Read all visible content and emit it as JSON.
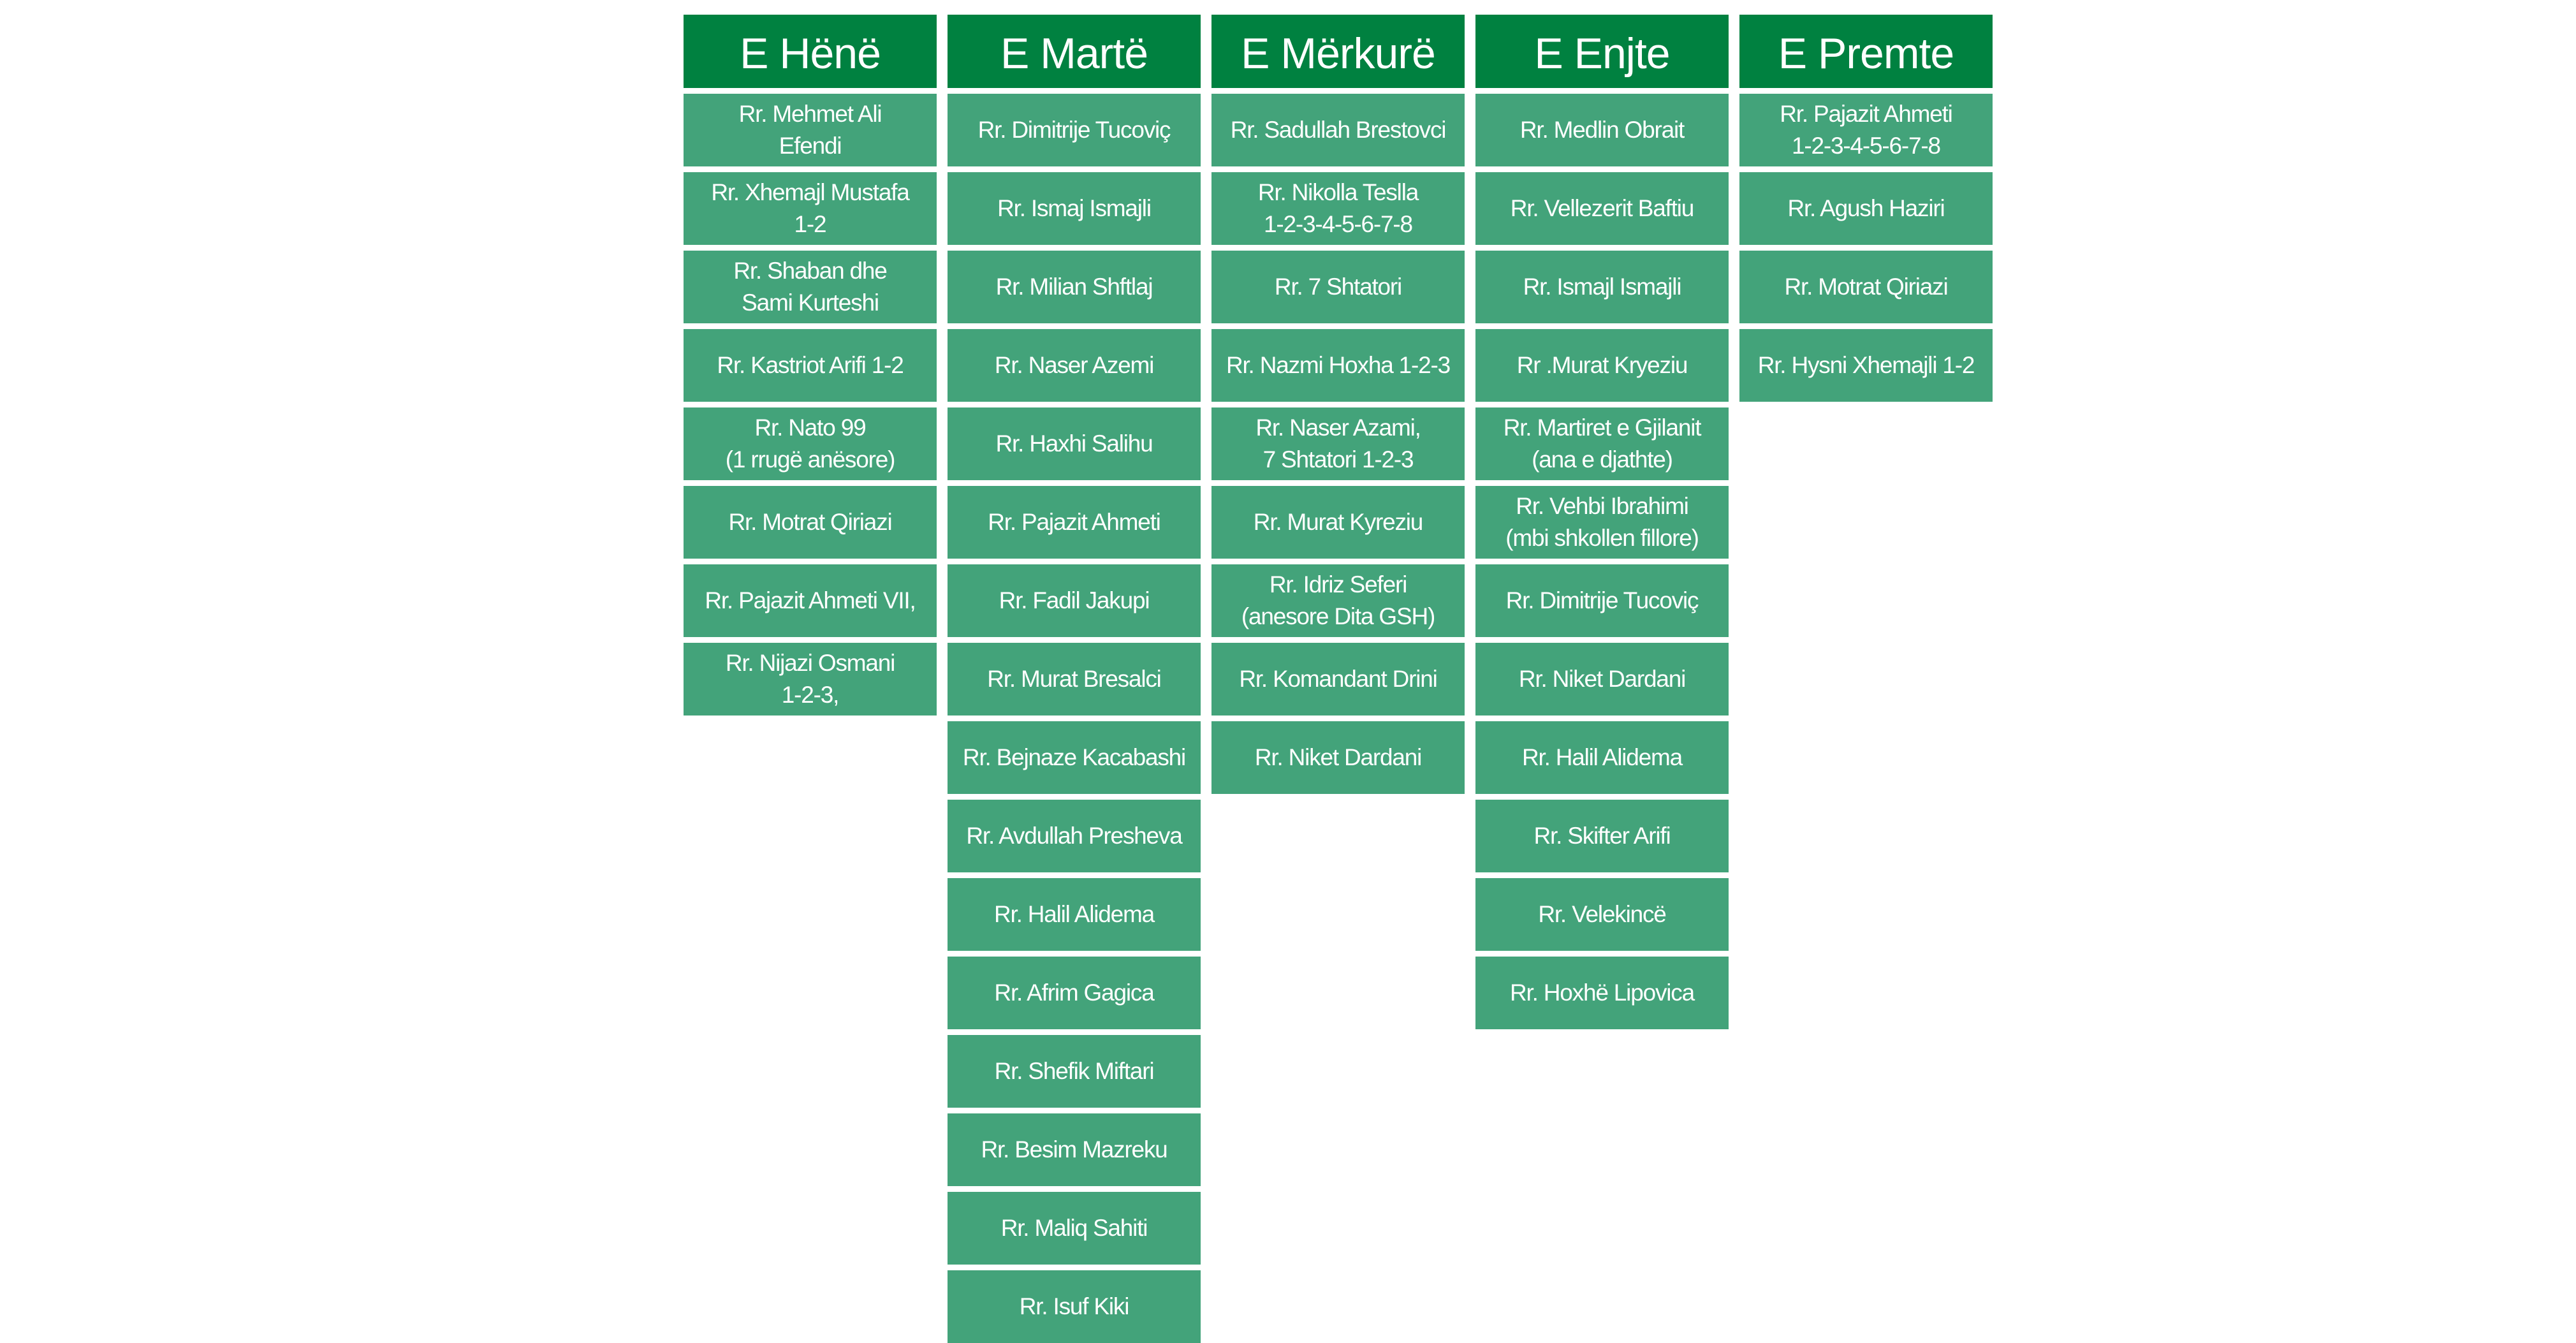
{
  "colors": {
    "header_bg": "#008140",
    "cell_bg": "#43a37a",
    "text": "#ffffff"
  },
  "days": [
    {
      "title": "E Hënë",
      "streets": [
        "Rr. Mehmet Ali\nEfendi",
        "Rr. Xhemajl Mustafa\n1-2",
        "Rr. Shaban dhe\nSami Kurteshi",
        "Rr. Kastriot Arifi 1-2",
        "Rr. Nato 99\n(1 rrugë anësore)",
        "Rr. Motrat Qiriazi",
        "Rr. Pajazit Ahmeti VII,",
        "Rr. Nijazi Osmani\n1-2-3,"
      ]
    },
    {
      "title": "E Martë",
      "streets": [
        "Rr. Dimitrije Tucoviç",
        "Rr. Ismaj Ismajli",
        "Rr. Milian Shftlaj",
        "Rr. Naser Azemi",
        "Rr. Haxhi Salihu",
        "Rr. Pajazit Ahmeti",
        "Rr. Fadil Jakupi",
        "Rr. Murat Bresalci",
        "Rr. Bejnaze Kacabashi",
        "Rr. Avdullah Presheva",
        "Rr. Halil Alidema",
        "Rr. Afrim Gagica",
        "Rr. Shefik Miftari",
        "Rr. Besim Mazreku",
        "Rr. Maliq Sahiti",
        "Rr. Isuf Kiki"
      ]
    },
    {
      "title": "E Mërkurë",
      "streets": [
        "Rr. Sadullah Brestovci",
        "Rr. Nikolla Teslla\n1-2-3-4-5-6-7-8",
        "Rr. 7 Shtatori",
        "Rr. Nazmi Hoxha 1-2-3",
        "Rr. Naser Azami,\n7 Shtatori 1-2-3",
        "Rr. Murat Kyreziu",
        "Rr. Idriz Seferi\n(anesore Dita GSH)",
        "Rr. Komandant Drini",
        "Rr. Niket Dardani"
      ]
    },
    {
      "title": "E Enjte",
      "streets": [
        "Rr. Medlin Obrait",
        "Rr. Vellezerit Baftiu",
        "Rr. Ismajl Ismajli",
        "Rr .Murat Kryeziu",
        "Rr. Martiret e Gjilanit\n(ana e djathte)",
        "Rr. Vehbi Ibrahimi\n(mbi shkollen fillore)",
        "Rr. Dimitrije Tucoviç",
        "Rr. Niket Dardani",
        "Rr. Halil Alidema",
        "Rr. Skifter Arifi",
        "Rr. Velekincë",
        "Rr. Hoxhë Lipovica"
      ]
    },
    {
      "title": "E Premte",
      "streets": [
        "Rr. Pajazit Ahmeti\n1-2-3-4-5-6-7-8",
        "Rr. Agush Haziri",
        "Rr. Motrat Qiriazi",
        "Rr. Hysni Xhemajli 1-2"
      ]
    }
  ]
}
